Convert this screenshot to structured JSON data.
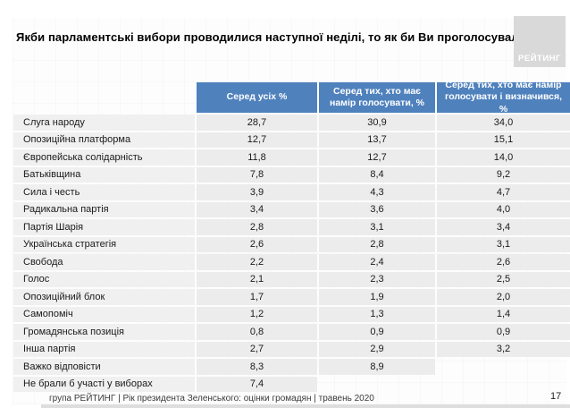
{
  "title": "Якби парламентські вибори проводилися наступної неділі, то як би Ви проголосували?",
  "logo": {
    "text": "РЕЙТИНГ"
  },
  "footer": {
    "source": "група РЕЙТИНГ |  Рік президента Зеленського: оцінки громадян | травень 2020",
    "page": "17"
  },
  "colors": {
    "header_blue": "#4f81bd",
    "row_fill": "#ececec",
    "logo_gray": "#d9d9d9"
  },
  "chart_data": {
    "type": "table",
    "title": "Якби парламентські вибори проводилися наступної неділі, то як би Ви проголосували?",
    "columns": [
      "Серед усіх %",
      "Серед тих, хто має намір голосувати, %",
      "Серед тих, хто має намір голосувати і визначився, %"
    ],
    "rows": [
      {
        "label": "Слуга народу",
        "values": [
          "28,7",
          "30,9",
          "34,0"
        ]
      },
      {
        "label": "Опозиційна платформа",
        "values": [
          "12,7",
          "13,7",
          "15,1"
        ]
      },
      {
        "label": "Європейська солідарність",
        "values": [
          "11,8",
          "12,7",
          "14,0"
        ]
      },
      {
        "label": "Батьківщина",
        "values": [
          "7,8",
          "8,4",
          "9,2"
        ]
      },
      {
        "label": "Сила і честь",
        "values": [
          "3,9",
          "4,3",
          "4,7"
        ]
      },
      {
        "label": "Радикальна партія",
        "values": [
          "3,4",
          "3,6",
          "4,0"
        ]
      },
      {
        "label": "Партія Шарія",
        "values": [
          "2,8",
          "3,1",
          "3,4"
        ]
      },
      {
        "label": "Українська стратегія",
        "values": [
          "2,6",
          "2,8",
          "3,1"
        ]
      },
      {
        "label": "Свобода",
        "values": [
          "2,2",
          "2,4",
          "2,6"
        ]
      },
      {
        "label": "Голос",
        "values": [
          "2,1",
          "2,3",
          "2,5"
        ]
      },
      {
        "label": "Опозиційний блок",
        "values": [
          "1,7",
          "1,9",
          "2,0"
        ]
      },
      {
        "label": "Самопоміч",
        "values": [
          "1,2",
          "1,3",
          "1,4"
        ]
      },
      {
        "label": "Громадянська позиція",
        "values": [
          "0,8",
          "0,9",
          "0,9"
        ]
      },
      {
        "label": "Інша партія",
        "values": [
          "2,7",
          "2,9",
          "3,2"
        ]
      },
      {
        "label": "Важко відповісти",
        "values": [
          "8,3",
          "8,9",
          ""
        ]
      },
      {
        "label": "Не брали б участі у виборах",
        "values": [
          "7,4",
          "",
          ""
        ]
      }
    ]
  }
}
